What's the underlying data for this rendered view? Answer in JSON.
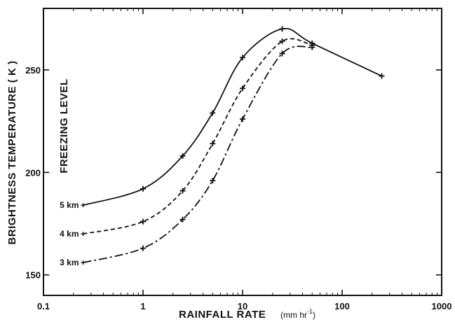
{
  "chart_data": {
    "type": "line",
    "xscale": "log",
    "xlim": [
      0.1,
      1000
    ],
    "ylim": [
      140,
      280
    ],
    "x_ticks": [
      0.1,
      1,
      10,
      100,
      1000
    ],
    "x_tick_labels": [
      "0.1",
      "1",
      "10",
      "100",
      "1000"
    ],
    "y_ticks": [
      150,
      200,
      250
    ],
    "y_tick_labels": [
      "150",
      "200",
      "250"
    ],
    "xlabel": "RAINFALL RATE",
    "xlabel_units": "(mm hr",
    "xlabel_units_exp": "-1",
    "xlabel_units_close": ")",
    "ylabel": "BRIGHTNESS   TEMPERATURE   ( K )",
    "annotation": "FREEZING LEVEL",
    "grid": false,
    "series": [
      {
        "name": "5 km",
        "style": "solid",
        "x": [
          0.25,
          1,
          2.5,
          5,
          10,
          25,
          50,
          250
        ],
        "y": [
          184,
          192,
          208,
          229,
          256,
          270,
          263,
          247
        ]
      },
      {
        "name": "4 km",
        "style": "dashed",
        "x": [
          0.25,
          1,
          2.5,
          5,
          10,
          25,
          50
        ],
        "y": [
          170,
          176,
          191,
          214,
          241,
          264,
          262
        ]
      },
      {
        "name": "3 km",
        "style": "dashdot",
        "x": [
          0.25,
          1,
          2.5,
          5,
          10,
          25,
          50
        ],
        "y": [
          156,
          163,
          177,
          196,
          226,
          258,
          261
        ]
      }
    ]
  }
}
